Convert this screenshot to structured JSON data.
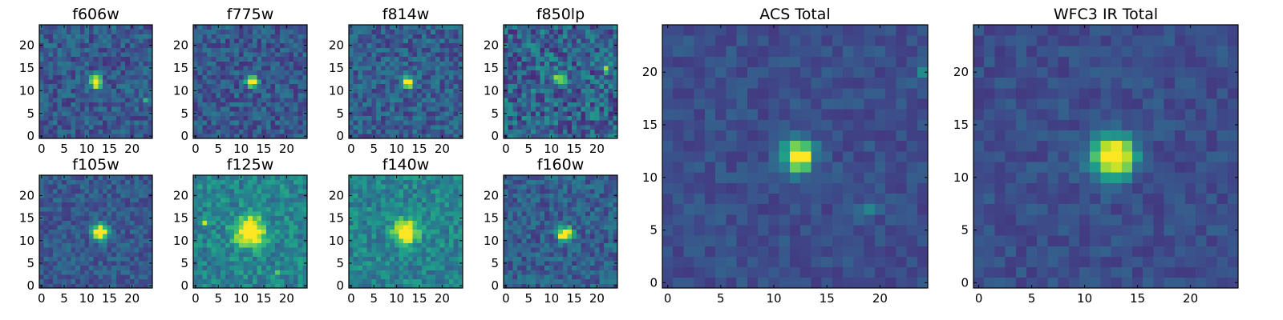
{
  "figure": {
    "title": ""
  },
  "colormap": {
    "name": "viridis",
    "stops": [
      "#440154",
      "#482878",
      "#3e4989",
      "#31688e",
      "#26828e",
      "#1f9e89",
      "#35b779",
      "#6ece58",
      "#b5de2b",
      "#fde725"
    ]
  },
  "chart_data": [
    {
      "type": "heatmap",
      "title": "f606w",
      "grid_size": 25,
      "xlim": [
        0,
        24
      ],
      "ylim": [
        0,
        24
      ],
      "xticks": [
        "0",
        "5",
        "10",
        "15",
        "20"
      ],
      "yticks": [
        "0",
        "5",
        "10",
        "15",
        "20"
      ],
      "source": {
        "x": 12,
        "y": 12,
        "peak": 0.95,
        "sigma": 0.9,
        "background": 0.28,
        "noise": 0.28,
        "seed": 11,
        "extras": [
          [
            23,
            8,
            0.45
          ]
        ]
      }
    },
    {
      "type": "heatmap",
      "title": "f775w",
      "grid_size": 25,
      "xlim": [
        0,
        24
      ],
      "ylim": [
        0,
        24
      ],
      "xticks": [
        "0",
        "5",
        "10",
        "15",
        "20"
      ],
      "yticks": [
        "0",
        "5",
        "10",
        "15",
        "20"
      ],
      "source": {
        "x": 12.5,
        "y": 12,
        "peak": 0.95,
        "sigma": 0.85,
        "background": 0.28,
        "noise": 0.28,
        "seed": 23,
        "extras": []
      }
    },
    {
      "type": "heatmap",
      "title": "f814w",
      "grid_size": 25,
      "xlim": [
        0,
        24
      ],
      "ylim": [
        0,
        24
      ],
      "xticks": [
        "0",
        "5",
        "10",
        "15",
        "20"
      ],
      "yticks": [
        "0",
        "5",
        "10",
        "15",
        "20"
      ],
      "source": {
        "x": 12.5,
        "y": 12,
        "peak": 0.9,
        "sigma": 0.85,
        "background": 0.3,
        "noise": 0.3,
        "seed": 37,
        "extras": []
      }
    },
    {
      "type": "heatmap",
      "title": "f850lp",
      "grid_size": 25,
      "xlim": [
        0,
        24
      ],
      "ylim": [
        0,
        24
      ],
      "xticks": [
        "0",
        "5",
        "10",
        "15",
        "20"
      ],
      "yticks": [
        "0",
        "5",
        "10",
        "15",
        "20"
      ],
      "source": {
        "x": 12,
        "y": 13,
        "peak": 0.55,
        "sigma": 1.0,
        "background": 0.32,
        "noise": 0.42,
        "seed": 51,
        "extras": [
          [
            22,
            15,
            0.6
          ]
        ]
      }
    },
    {
      "type": "heatmap",
      "title": "f105w",
      "grid_size": 25,
      "xlim": [
        0,
        24
      ],
      "ylim": [
        0,
        24
      ],
      "xticks": [
        "0",
        "5",
        "10",
        "15",
        "20"
      ],
      "yticks": [
        "0",
        "5",
        "10",
        "15",
        "20"
      ],
      "source": {
        "x": 13,
        "y": 12,
        "peak": 0.95,
        "sigma": 1.2,
        "background": 0.28,
        "noise": 0.22,
        "seed": 67,
        "extras": []
      }
    },
    {
      "type": "heatmap",
      "title": "f125w",
      "grid_size": 25,
      "xlim": [
        0,
        24
      ],
      "ylim": [
        0,
        24
      ],
      "xticks": [
        "0",
        "5",
        "10",
        "15",
        "20"
      ],
      "yticks": [
        "0",
        "5",
        "10",
        "15",
        "20"
      ],
      "source": {
        "x": 12,
        "y": 12,
        "peak": 0.85,
        "sigma": 2.2,
        "background": 0.45,
        "noise": 0.3,
        "seed": 79,
        "extras": [
          [
            2,
            14,
            0.35
          ],
          [
            18,
            3,
            0.3
          ]
        ]
      }
    },
    {
      "type": "heatmap",
      "title": "f140w",
      "grid_size": 25,
      "xlim": [
        0,
        24
      ],
      "ylim": [
        0,
        24
      ],
      "xticks": [
        "0",
        "5",
        "10",
        "15",
        "20"
      ],
      "yticks": [
        "0",
        "5",
        "10",
        "15",
        "20"
      ],
      "source": {
        "x": 12,
        "y": 12,
        "peak": 0.8,
        "sigma": 1.8,
        "background": 0.45,
        "noise": 0.28,
        "seed": 91,
        "extras": []
      }
    },
    {
      "type": "heatmap",
      "title": "f160w",
      "grid_size": 25,
      "xlim": [
        0,
        24
      ],
      "ylim": [
        0,
        24
      ],
      "xticks": [
        "0",
        "5",
        "10",
        "15",
        "20"
      ],
      "yticks": [
        "0",
        "5",
        "10",
        "15",
        "20"
      ],
      "source": {
        "x": 13,
        "y": 11.5,
        "peak": 0.95,
        "sigma": 1.1,
        "background": 0.3,
        "noise": 0.28,
        "seed": 103,
        "extras": []
      }
    },
    {
      "type": "heatmap",
      "title": "ACS Total",
      "grid_size": 25,
      "xlim": [
        0,
        24
      ],
      "ylim": [
        0,
        24
      ],
      "xticks": [
        "0",
        "5",
        "10",
        "15",
        "20"
      ],
      "yticks": [
        "0",
        "5",
        "10",
        "15",
        "20"
      ],
      "source": {
        "x": 12.3,
        "y": 12,
        "peak": 1.0,
        "sigma": 0.95,
        "background": 0.24,
        "noise": 0.14,
        "seed": 127,
        "extras": [
          [
            24,
            20,
            0.25
          ],
          [
            19,
            7,
            0.25
          ]
        ]
      }
    },
    {
      "type": "heatmap",
      "title": "WFC3 IR Total",
      "grid_size": 25,
      "xlim": [
        0,
        24
      ],
      "ylim": [
        0,
        24
      ],
      "xticks": [
        "0",
        "5",
        "10",
        "15",
        "20"
      ],
      "yticks": [
        "0",
        "5",
        "10",
        "15",
        "20"
      ],
      "source": {
        "x": 12.7,
        "y": 12,
        "peak": 1.0,
        "sigma": 1.35,
        "background": 0.24,
        "noise": 0.14,
        "seed": 139,
        "extras": []
      }
    }
  ]
}
